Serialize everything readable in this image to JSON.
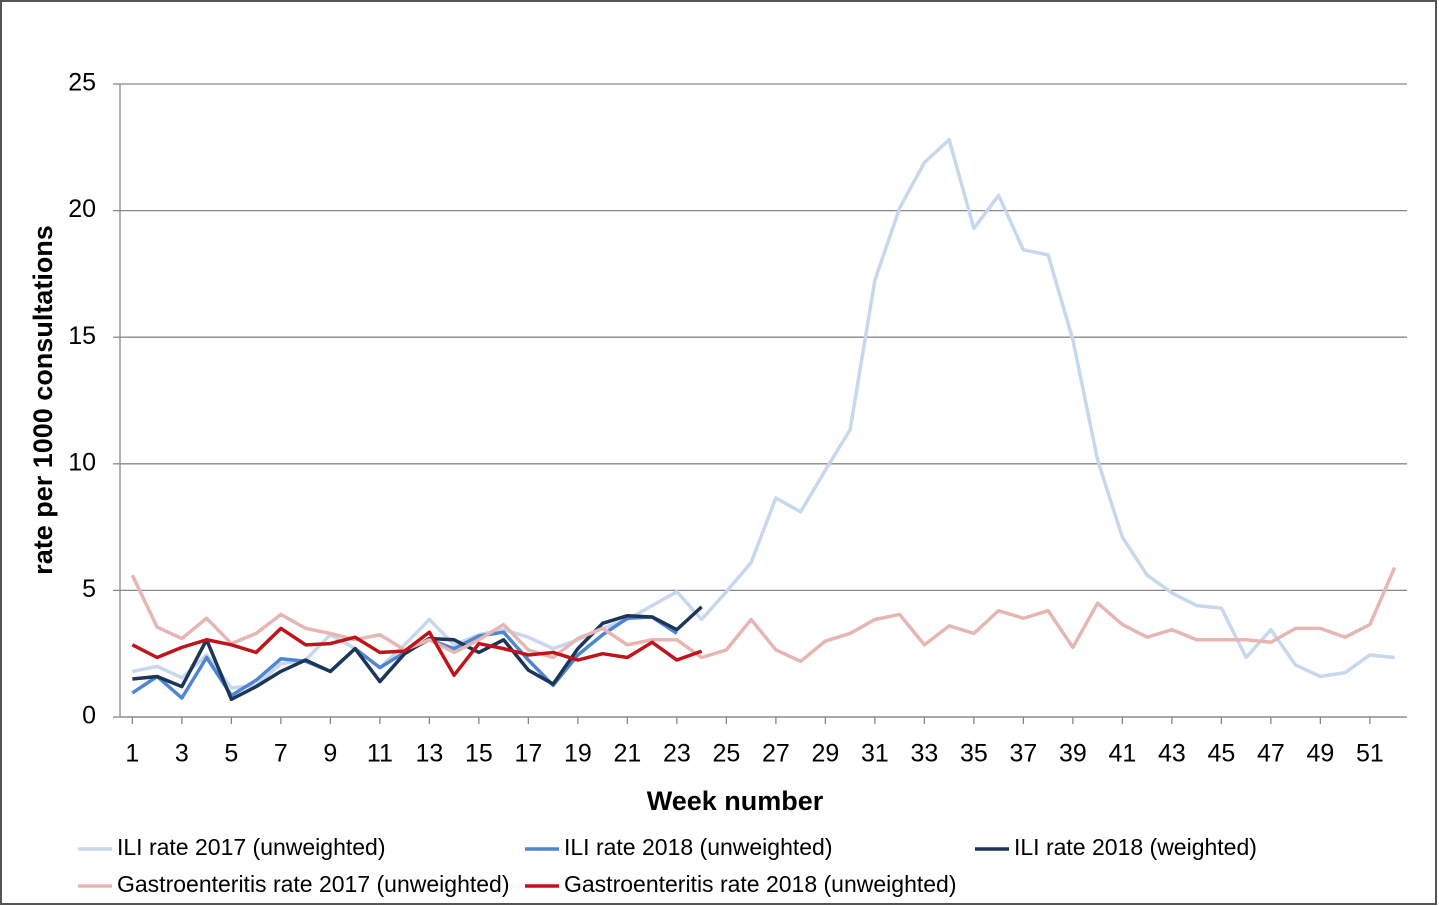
{
  "chart_data": {
    "type": "line",
    "x": [
      1,
      2,
      3,
      4,
      5,
      6,
      7,
      8,
      9,
      10,
      11,
      12,
      13,
      14,
      15,
      16,
      17,
      18,
      19,
      20,
      21,
      22,
      23,
      24,
      25,
      26,
      27,
      28,
      29,
      30,
      31,
      32,
      33,
      34,
      35,
      36,
      37,
      38,
      39,
      40,
      41,
      42,
      43,
      44,
      45,
      46,
      47,
      48,
      49,
      50,
      51,
      52
    ],
    "xlim": [
      0.5,
      52.5
    ],
    "xticks": [
      1,
      3,
      5,
      7,
      9,
      11,
      13,
      15,
      17,
      19,
      21,
      23,
      25,
      27,
      29,
      31,
      33,
      35,
      37,
      39,
      41,
      43,
      45,
      47,
      49,
      51
    ],
    "ylim": [
      0,
      25
    ],
    "yticks": [
      0,
      5,
      10,
      15,
      20,
      25
    ],
    "grid": true,
    "x_label": "Week number",
    "y_label": "rate per 1000 consultations",
    "legend": "bottom",
    "series": [
      {
        "name": "ILI rate 2017 (unweighted)",
        "color": "#c6d7ee",
        "values": [
          1.8,
          2.0,
          1.55,
          2.45,
          1.15,
          1.25,
          2.1,
          2.25,
          3.25,
          2.7,
          1.95,
          2.85,
          3.85,
          2.85,
          3.25,
          3.45,
          3.15,
          2.7,
          3.05,
          3.5,
          3.85,
          4.4,
          4.95,
          3.85,
          4.95,
          6.1,
          8.65,
          8.1,
          9.75,
          11.35,
          17.25,
          20.1,
          21.9,
          22.8,
          19.3,
          20.6,
          18.45,
          18.25,
          14.9,
          10.15,
          7.1,
          5.6,
          4.9,
          4.4,
          4.3,
          2.35,
          3.45,
          2.05,
          1.6,
          1.75,
          2.45,
          2.35
        ]
      },
      {
        "name": "ILI rate 2018 (unweighted)",
        "color": "#4f86d0",
        "values": [
          0.95,
          1.6,
          0.75,
          2.35,
          0.85,
          1.45,
          2.3,
          2.2,
          1.8,
          2.7,
          1.95,
          2.55,
          3.05,
          2.7,
          3.2,
          3.35,
          2.25,
          1.25,
          2.45,
          3.25,
          3.9,
          3.95,
          3.3,
          null,
          null,
          null,
          null,
          null,
          null,
          null,
          null,
          null,
          null,
          null,
          null,
          null,
          null,
          null,
          null,
          null,
          null,
          null,
          null,
          null,
          null,
          null,
          null,
          null,
          null,
          null,
          null,
          null
        ]
      },
      {
        "name": "ILI rate 2018 (weighted)",
        "color": "#1c3558",
        "values": [
          1.5,
          1.6,
          1.2,
          3.05,
          0.7,
          1.2,
          1.8,
          2.25,
          1.8,
          2.7,
          1.4,
          2.5,
          3.1,
          3.05,
          2.55,
          3.05,
          1.85,
          1.3,
          2.7,
          3.7,
          4.0,
          3.95,
          3.45,
          4.35,
          null,
          null,
          null,
          null,
          null,
          null,
          null,
          null,
          null,
          null,
          null,
          null,
          null,
          null,
          null,
          null,
          null,
          null,
          null,
          null,
          null,
          null,
          null,
          null,
          null,
          null,
          null,
          null
        ]
      },
      {
        "name": "Gastroenteritis rate 2017 (unweighted)",
        "color": "#e6b6b3",
        "values": [
          5.6,
          3.55,
          3.1,
          3.9,
          2.9,
          3.3,
          4.05,
          3.5,
          3.3,
          3.05,
          3.25,
          2.65,
          3.05,
          2.55,
          3.05,
          3.65,
          2.65,
          2.35,
          3.1,
          3.5,
          2.85,
          3.05,
          3.05,
          2.35,
          2.65,
          3.85,
          2.65,
          2.2,
          3.0,
          3.3,
          3.85,
          4.05,
          2.85,
          3.6,
          3.3,
          4.2,
          3.9,
          4.2,
          2.75,
          4.5,
          3.65,
          3.15,
          3.45,
          3.05,
          3.05,
          3.05,
          2.95,
          3.5,
          3.5,
          3.15,
          3.65,
          5.9
        ]
      },
      {
        "name": "Gastroenteritis rate 2018 (unweighted)",
        "color": "#c0141a",
        "values": [
          2.85,
          2.35,
          2.75,
          3.05,
          2.85,
          2.55,
          3.5,
          2.85,
          2.9,
          3.15,
          2.55,
          2.6,
          3.35,
          1.65,
          2.9,
          2.7,
          2.45,
          2.55,
          2.25,
          2.5,
          2.35,
          2.95,
          2.25,
          2.6,
          null,
          null,
          null,
          null,
          null,
          null,
          null,
          null,
          null,
          null,
          null,
          null,
          null,
          null,
          null,
          null,
          null,
          null,
          null,
          null,
          null,
          null,
          null,
          null,
          null,
          null,
          null,
          null
        ]
      }
    ]
  }
}
